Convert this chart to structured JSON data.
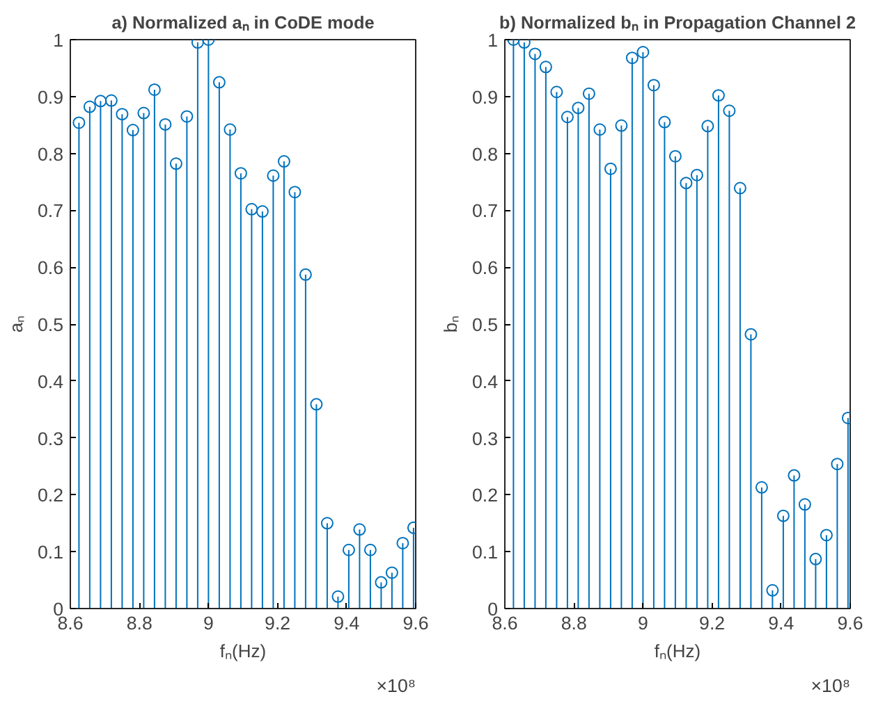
{
  "chart_data": [
    {
      "type": "lollipop",
      "title": "a) Normalized aₙ in CoDE mode",
      "xlabel": "fₙ(Hz)",
      "ylabel": "aₙ",
      "x": [
        8.625,
        8.65625,
        8.6875,
        8.71875,
        8.75,
        8.78125,
        8.8125,
        8.84375,
        8.875,
        8.90625,
        8.9375,
        8.96875,
        9.0,
        9.03125,
        9.0625,
        9.09375,
        9.125,
        9.15625,
        9.1875,
        9.21875,
        9.25,
        9.28125,
        9.3125,
        9.34375,
        9.375,
        9.40625,
        9.4375,
        9.46875,
        9.5,
        9.53125,
        9.5625,
        9.59375
      ],
      "series": [
        {
          "color": "#0072bd",
          "values": [
            0.854,
            0.882,
            0.892,
            0.893,
            0.869,
            0.841,
            0.871,
            0.912,
            0.851,
            0.782,
            0.865,
            0.995,
            1.0,
            0.925,
            0.842,
            0.765,
            0.702,
            0.698,
            0.761,
            0.786,
            0.732,
            0.587,
            0.359,
            0.15,
            0.021,
            0.103,
            0.139,
            0.103,
            0.046,
            0.063,
            0.115,
            0.142
          ]
        }
      ],
      "xlim": [
        8.6,
        9.6
      ],
      "xticks": [
        8.6,
        8.8,
        9,
        9.2,
        9.4,
        9.6
      ],
      "ylim": [
        0,
        1
      ],
      "yticks": [
        0,
        0.1,
        0.2,
        0.3,
        0.4,
        0.5,
        0.6,
        0.7,
        0.8,
        0.9,
        1
      ],
      "marker": "circle",
      "grid": false,
      "annotations": [
        "×10⁸"
      ]
    },
    {
      "type": "lollipop",
      "title": "b) Normalized bₙ in Propagation Channel 2",
      "xlabel": "fₙ(Hz)",
      "ylabel": "bₙ",
      "x": [
        8.625,
        8.65625,
        8.6875,
        8.71875,
        8.75,
        8.78125,
        8.8125,
        8.84375,
        8.875,
        8.90625,
        8.9375,
        8.96875,
        9.0,
        9.03125,
        9.0625,
        9.09375,
        9.125,
        9.15625,
        9.1875,
        9.21875,
        9.25,
        9.28125,
        9.3125,
        9.34375,
        9.375,
        9.40625,
        9.4375,
        9.46875,
        9.5,
        9.53125,
        9.5625,
        9.59375
      ],
      "series": [
        {
          "color": "#0072bd",
          "values": [
            1.0,
            0.995,
            0.975,
            0.952,
            0.908,
            0.864,
            0.88,
            0.905,
            0.842,
            0.773,
            0.849,
            0.968,
            0.978,
            0.92,
            0.855,
            0.795,
            0.748,
            0.762,
            0.848,
            0.902,
            0.875,
            0.739,
            0.482,
            0.213,
            0.032,
            0.163,
            0.234,
            0.183,
            0.087,
            0.129,
            0.254,
            0.335
          ]
        }
      ],
      "xlim": [
        8.6,
        9.6
      ],
      "xticks": [
        8.6,
        8.8,
        9,
        9.2,
        9.4,
        9.6
      ],
      "ylim": [
        0,
        1
      ],
      "yticks": [
        0,
        0.1,
        0.2,
        0.3,
        0.4,
        0.5,
        0.6,
        0.7,
        0.8,
        0.9,
        1
      ],
      "marker": "circle",
      "grid": false,
      "annotations": [
        "×10⁸"
      ]
    }
  ]
}
